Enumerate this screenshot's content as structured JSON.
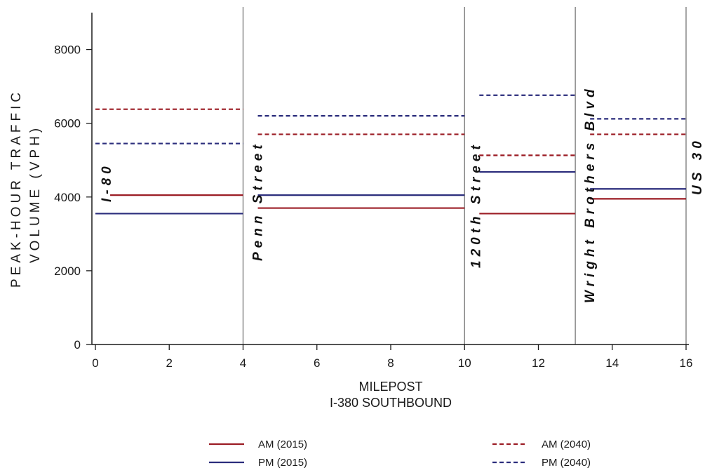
{
  "chart_data": {
    "type": "line",
    "xlabel": [
      "MILEPOST",
      "I-380 SOUTHBOUND"
    ],
    "ylabel": [
      "PEAK-HOUR TRAFFIC",
      "VOLUME (VPH)"
    ],
    "xlim": [
      0,
      16
    ],
    "ylim": [
      0,
      9000
    ],
    "x_ticks": [
      0,
      2,
      4,
      6,
      8,
      10,
      12,
      14,
      16
    ],
    "y_ticks": [
      0,
      2000,
      4000,
      6000,
      8000
    ],
    "grid": false,
    "colors": {
      "am": "#9b1c24",
      "pm": "#2b2d7c",
      "divider": "#777777"
    },
    "interchanges": [
      {
        "milepost": 0,
        "label": "I-80"
      },
      {
        "milepost": 4,
        "label": "Penn Street"
      },
      {
        "milepost": 10,
        "label": "120th Street"
      },
      {
        "milepost": 13,
        "label": "Wright Brothers Blvd"
      },
      {
        "milepost": 16,
        "label": "US 30"
      }
    ],
    "series": [
      {
        "name": "AM (2015)",
        "color": "#9b1c24",
        "dash": false,
        "segments": [
          {
            "x": [
              0.4,
              4
            ],
            "y": 4050
          },
          {
            "x": [
              4.4,
              10
            ],
            "y": 3700
          },
          {
            "x": [
              10.4,
              13
            ],
            "y": 3550
          },
          {
            "x": [
              13.4,
              16
            ],
            "y": 3950
          }
        ]
      },
      {
        "name": "PM (2015)",
        "color": "#2b2d7c",
        "dash": false,
        "segments": [
          {
            "x": [
              0,
              4
            ],
            "y": 3550
          },
          {
            "x": [
              4.4,
              10
            ],
            "y": 4050
          },
          {
            "x": [
              10.4,
              13
            ],
            "y": 4680
          },
          {
            "x": [
              13.4,
              16
            ],
            "y": 4220
          }
        ]
      },
      {
        "name": "AM (2040)",
        "color": "#9b1c24",
        "dash": true,
        "segments": [
          {
            "x": [
              0,
              4
            ],
            "y": 6380
          },
          {
            "x": [
              4.4,
              10
            ],
            "y": 5700
          },
          {
            "x": [
              10.4,
              13
            ],
            "y": 5130
          },
          {
            "x": [
              13.4,
              16
            ],
            "y": 5700
          }
        ]
      },
      {
        "name": "PM (2040)",
        "color": "#2b2d7c",
        "dash": true,
        "segments": [
          {
            "x": [
              0,
              4
            ],
            "y": 5450
          },
          {
            "x": [
              4.4,
              10
            ],
            "y": 6200
          },
          {
            "x": [
              10.4,
              13
            ],
            "y": 6760
          },
          {
            "x": [
              13.4,
              16
            ],
            "y": 6120
          }
        ]
      }
    ]
  }
}
